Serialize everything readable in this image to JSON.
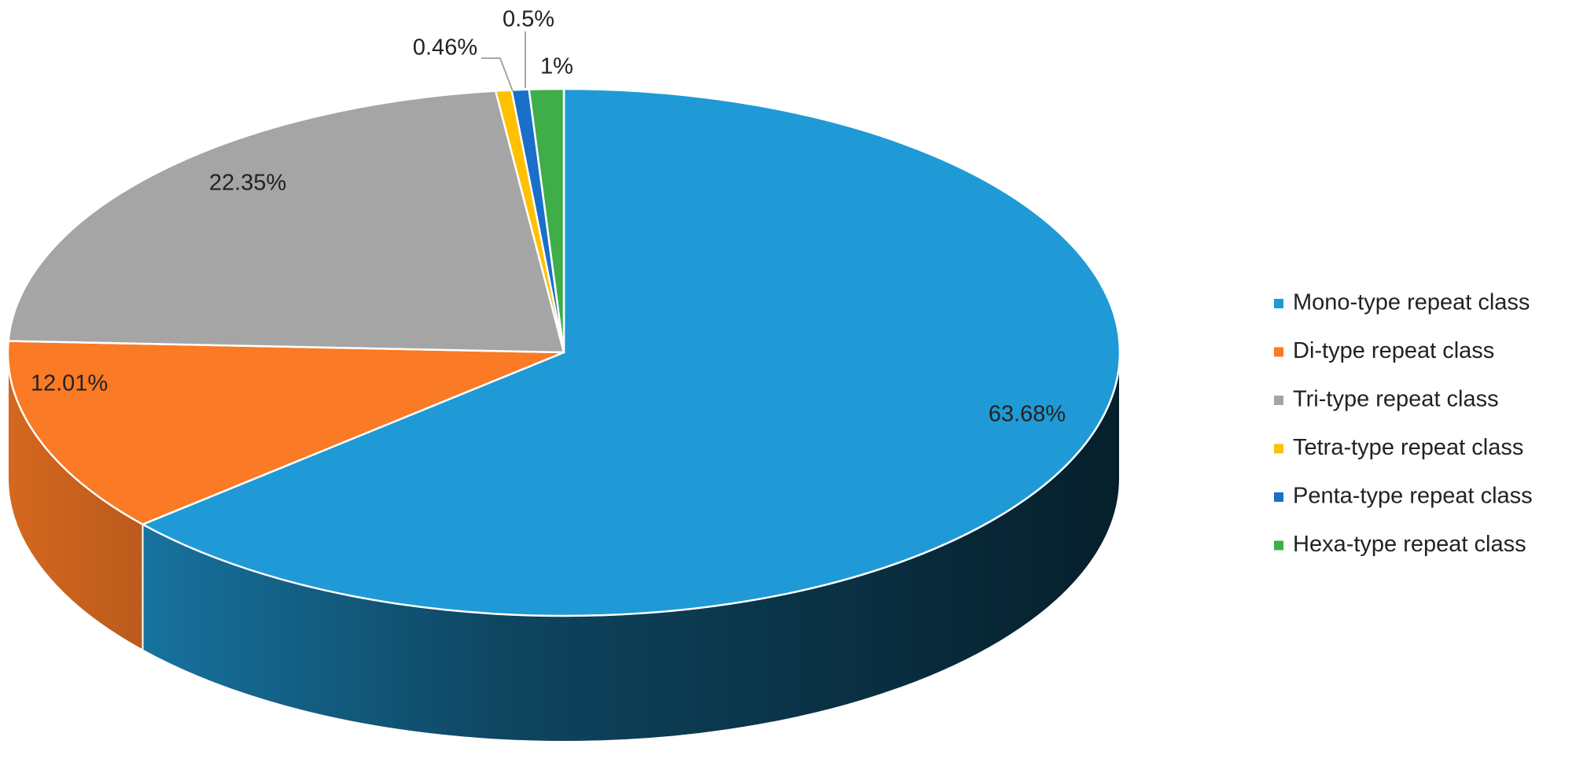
{
  "chart_data": {
    "type": "pie3d",
    "series": [
      {
        "name": "Mono-type repeat class",
        "color": "#1f9ad6",
        "values": [
          63.68
        ],
        "value_labels": [
          "63.68%"
        ]
      },
      {
        "name": "Di-type repeat class",
        "color": "#fa7a25",
        "values": [
          12.01
        ],
        "value_labels": [
          "12.01%"
        ]
      },
      {
        "name": "Tri-type repeat class",
        "color": "#a5a5a5",
        "values": [
          22.35
        ],
        "value_labels": [
          "22.35%"
        ]
      },
      {
        "name": "Tetra-type repeat class",
        "color": "#ffc000",
        "values": [
          0.46
        ],
        "value_labels": [
          "0.46%"
        ]
      },
      {
        "name": "Penta-type repeat class",
        "color": "#1a6fc9",
        "values": [
          0.5
        ],
        "value_labels": [
          "0.5%"
        ]
      },
      {
        "name": "Hexa-type repeat class",
        "color": "#3fae49",
        "values": [
          1
        ],
        "value_labels": [
          "1%"
        ]
      }
    ],
    "legend": "right"
  }
}
